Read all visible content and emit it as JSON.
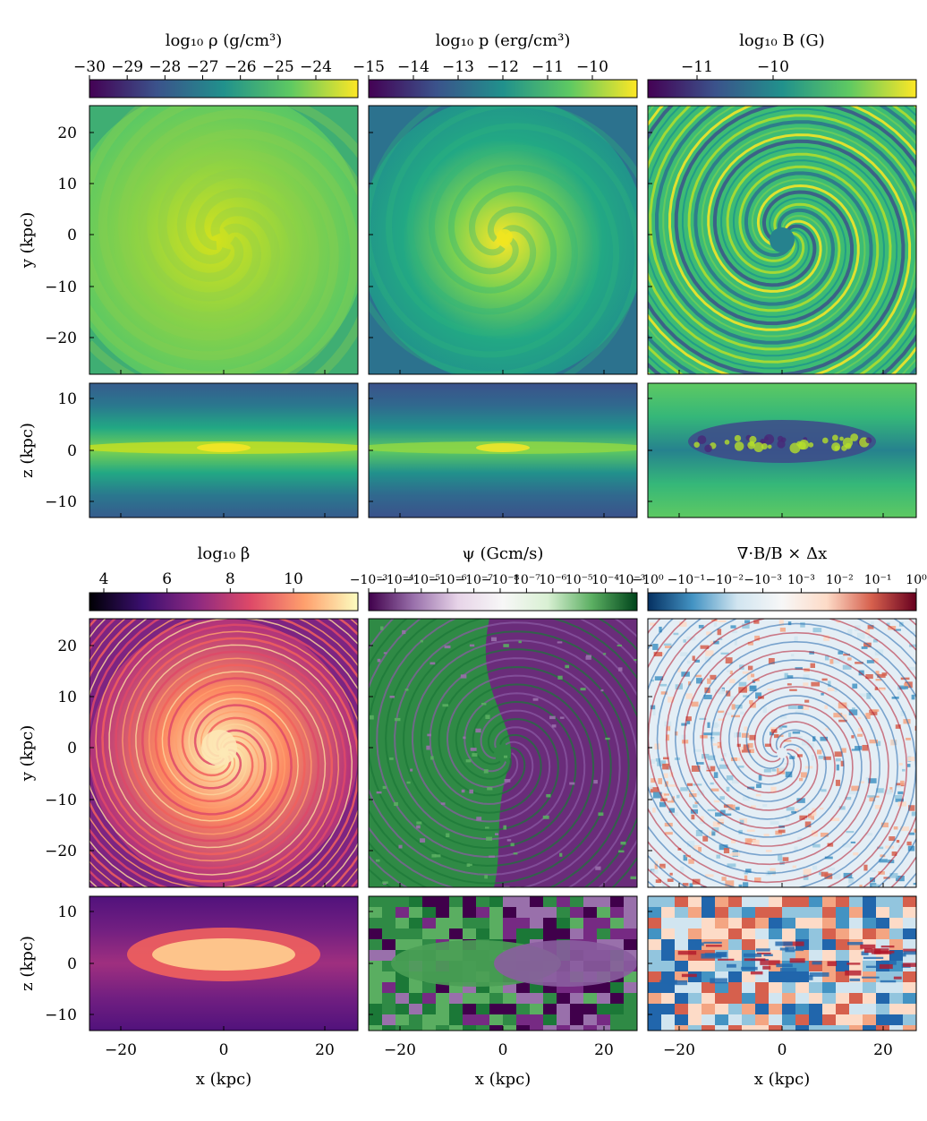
{
  "figure": {
    "rows": [
      {
        "id": "top",
        "face_ylabel": "y (kpc)",
        "edge_ylabel": "z (kpc)",
        "face_yticks": [
          "20",
          "10",
          "0",
          "−10",
          "−20"
        ],
        "edge_yticks": [
          "10",
          "0",
          "−10"
        ],
        "panels": [
          {
            "name": "density",
            "colorbar_label": "log₁₀ ρ (g/cm³)",
            "colorbar_ticks": [
              "−30",
              "−29",
              "−28",
              "−27",
              "−26",
              "−25",
              "−24"
            ],
            "colormap": "viridis",
            "colormap_stops": [
              "#440154",
              "#3b528b",
              "#21918c",
              "#5ec962",
              "#fde725"
            ],
            "face_pattern": "smooth spiral, bright diffuse core",
            "edge_pattern": "thin bright disc"
          },
          {
            "name": "pressure",
            "colorbar_label": "log₁₀ p (erg/cm³)",
            "colorbar_ticks": [
              "−15",
              "−14",
              "−13",
              "−12",
              "−11",
              "−10"
            ],
            "colormap": "viridis",
            "colormap_stops": [
              "#440154",
              "#3b528b",
              "#21918c",
              "#5ec962",
              "#fde725"
            ],
            "face_pattern": "smooth spiral, compact bright centre",
            "edge_pattern": "thin bright disc"
          },
          {
            "name": "magnetic-field",
            "colorbar_label": "log₁₀ B (G)",
            "colorbar_ticks": [
              "−11",
              "−10"
            ],
            "colormap": "viridis",
            "colormap_stops": [
              "#440154",
              "#3b528b",
              "#21918c",
              "#5ec962",
              "#fde725"
            ],
            "face_pattern": "filamentary spiral arms",
            "edge_pattern": "dark turbulent disc"
          }
        ]
      },
      {
        "id": "bottom",
        "face_ylabel": "y (kpc)",
        "edge_ylabel": "z (kpc)",
        "face_yticks": [
          "20",
          "10",
          "0",
          "−10",
          "−20"
        ],
        "edge_yticks": [
          "10",
          "0",
          "−10"
        ],
        "xlabel": "x (kpc)",
        "xticks": [
          "−20",
          "0",
          "20"
        ],
        "panels": [
          {
            "name": "plasma-beta",
            "colorbar_label": "log₁₀ β",
            "colorbar_ticks": [
              "4",
              "6",
              "8",
              "10"
            ],
            "colormap": "magma",
            "colormap_stops": [
              "#000004",
              "#3b0f70",
              "#8c2981",
              "#de4968",
              "#fe9f6d",
              "#fcfdbf"
            ],
            "face_pattern": "filamentary spiral arms, bright core",
            "edge_pattern": "bright central disc"
          },
          {
            "name": "psi",
            "colorbar_label": "ψ (Gcm/s)",
            "colorbar_ticks": [
              "−10⁻³",
              "−10⁻⁴",
              "−10⁻⁵",
              "−10⁻⁶",
              "−10⁻⁷",
              "−10⁻⁸",
              "10⁻⁷",
              "10⁻⁶",
              "10⁻⁵",
              "10⁻⁴",
              "10⁻³"
            ],
            "colormap": "PRGn",
            "colormap_stops": [
              "#40004b",
              "#9970ab",
              "#e7d4e8",
              "#f7f7f7",
              "#d9f0d3",
              "#5aae61",
              "#00441b"
            ],
            "face_pattern": "green left half, purple right half",
            "edge_pattern": "blocky green and purple"
          },
          {
            "name": "divergence-b",
            "colorbar_label": "∇·B/B × Δx",
            "colorbar_ticks": [
              "−10⁰",
              "−10⁻¹",
              "−10⁻²",
              "−10⁻³",
              "10⁻³",
              "10⁻²",
              "10⁻¹",
              "10⁰"
            ],
            "colormap": "RdBu_r",
            "colormap_stops": [
              "#053061",
              "#4393c3",
              "#d1e5f0",
              "#f7f7f7",
              "#fddbc7",
              "#d6604d",
              "#67001f"
            ],
            "face_pattern": "noisy red and blue spiral",
            "edge_pattern": "blocky red and blue"
          }
        ]
      }
    ]
  },
  "chart_data": [
    {
      "type": "heatmap",
      "title": "log₁₀ ρ (g/cm³)",
      "view": "face-on",
      "xlabel": "",
      "ylabel": "y (kpc)",
      "ylim": [
        -26,
        26
      ],
      "xlim": [
        -26,
        26
      ],
      "colorbar_range": [
        -30,
        -23.2
      ]
    },
    {
      "type": "heatmap",
      "title": "log₁₀ p (erg/cm³)",
      "view": "face-on",
      "xlabel": "",
      "ylabel": "",
      "ylim": [
        -26,
        26
      ],
      "xlim": [
        -26,
        26
      ],
      "colorbar_range": [
        -15,
        -9.3
      ]
    },
    {
      "type": "heatmap",
      "title": "log₁₀ B (G)",
      "view": "face-on",
      "xlabel": "",
      "ylabel": "",
      "ylim": [
        -26,
        26
      ],
      "xlim": [
        -26,
        26
      ],
      "colorbar_range": [
        -11.5,
        -9.0
      ]
    },
    {
      "type": "heatmap",
      "title": "",
      "view": "edge-on",
      "xlabel": "",
      "ylabel": "z (kpc)",
      "ylim": [
        -13,
        13
      ],
      "xlim": [
        -26,
        26
      ]
    },
    {
      "type": "heatmap",
      "title": "",
      "view": "edge-on",
      "xlabel": "",
      "ylabel": "",
      "ylim": [
        -13,
        13
      ],
      "xlim": [
        -26,
        26
      ]
    },
    {
      "type": "heatmap",
      "title": "",
      "view": "edge-on",
      "xlabel": "",
      "ylabel": "",
      "ylim": [
        -13,
        13
      ],
      "xlim": [
        -26,
        26
      ]
    },
    {
      "type": "heatmap",
      "title": "log₁₀ β",
      "view": "face-on",
      "xlabel": "",
      "ylabel": "y (kpc)",
      "ylim": [
        -26,
        26
      ],
      "xlim": [
        -26,
        26
      ],
      "colorbar_range": [
        3.6,
        12.1
      ]
    },
    {
      "type": "heatmap",
      "title": "ψ (Gcm/s)",
      "view": "face-on",
      "xlabel": "",
      "ylabel": "",
      "ylim": [
        -26,
        26
      ],
      "xlim": [
        -26,
        26
      ],
      "colorbar_scale": "symlog"
    },
    {
      "type": "heatmap",
      "title": "∇·B/B × Δx",
      "view": "face-on",
      "xlabel": "",
      "ylabel": "",
      "ylim": [
        -26,
        26
      ],
      "xlim": [
        -26,
        26
      ],
      "colorbar_scale": "symlog",
      "colorbar_range": [
        -1,
        1
      ]
    },
    {
      "type": "heatmap",
      "title": "",
      "view": "edge-on",
      "xlabel": "x (kpc)",
      "ylabel": "z (kpc)",
      "ylim": [
        -13,
        13
      ],
      "xlim": [
        -26,
        26
      ],
      "xticks": [
        -20,
        0,
        20
      ]
    },
    {
      "type": "heatmap",
      "title": "",
      "view": "edge-on",
      "xlabel": "x (kpc)",
      "ylabel": "",
      "ylim": [
        -13,
        13
      ],
      "xlim": [
        -26,
        26
      ],
      "xticks": [
        -20,
        0,
        20
      ]
    },
    {
      "type": "heatmap",
      "title": "",
      "view": "edge-on",
      "xlabel": "x (kpc)",
      "ylabel": "",
      "ylim": [
        -13,
        13
      ],
      "xlim": [
        -26,
        26
      ],
      "xticks": [
        -20,
        0,
        20
      ]
    }
  ]
}
